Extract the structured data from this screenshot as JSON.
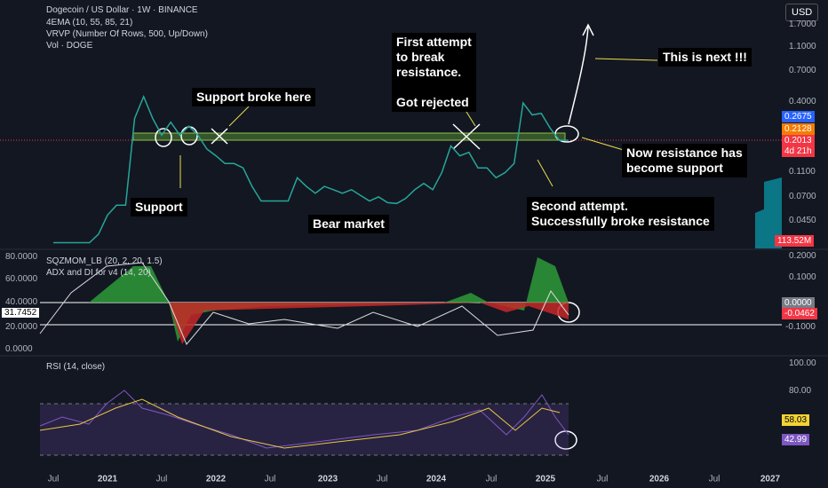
{
  "header": {
    "lines": [
      "Dogecoin / US Dollar · 1W · BINANCE",
      "4EMA (10, 55, 85, 21)",
      "VRVP (Number Of Rows, 500, Up/Down)",
      "Vol · DOGE"
    ],
    "currency_button": "USD"
  },
  "price_panel": {
    "axis_labels": [
      "1.7000",
      "1.1000",
      "0.7000",
      "0.4000",
      "0.1100",
      "0.0700",
      "0.0450"
    ],
    "price_labels": {
      "ema_blue": "0.2675",
      "ema_orange": "0.2128",
      "last": "0.2013",
      "countdown": "4d 21h",
      "volume": "113.52M"
    },
    "values": [
      0.03,
      0.03,
      0.03,
      0.03,
      0.03,
      0.035,
      0.05,
      0.06,
      0.06,
      0.3,
      0.45,
      0.3,
      0.22,
      0.28,
      0.22,
      0.26,
      0.22,
      0.17,
      0.15,
      0.13,
      0.13,
      0.12,
      0.085,
      0.065,
      0.065,
      0.065,
      0.065,
      0.1,
      0.085,
      0.075,
      0.085,
      0.08,
      0.075,
      0.08,
      0.072,
      0.065,
      0.07,
      0.063,
      0.062,
      0.068,
      0.08,
      0.09,
      0.08,
      0.11,
      0.18,
      0.15,
      0.16,
      0.12,
      0.12,
      0.1,
      0.11,
      0.13,
      0.4,
      0.32,
      0.33,
      0.25,
      0.2,
      0.2
    ]
  },
  "annotations": {
    "first_attempt": [
      "First attempt",
      "to break",
      "resistance.",
      "",
      "Got rejected"
    ],
    "this_is_next": "This is next !!!",
    "support_broke": "Support broke here",
    "support": "Support",
    "bear_market": "Bear market",
    "now_support": [
      "Now resistance has",
      "become support"
    ],
    "second_attempt": [
      "Second attempt.",
      "Successfully broke resistance"
    ]
  },
  "momentum_panel": {
    "titles": [
      "SQZMOM_LB (20, 2, 20, 1.5)",
      "ADX and DI for v4 (14, 20)"
    ],
    "left_axis": [
      "80.0000",
      "60.0000",
      "40.0000",
      "20.0000",
      "0.0000"
    ],
    "adx_label": "31.7452",
    "right_axis": [
      "0.2000",
      "0.1000",
      "-0.1000"
    ],
    "zero_label": "0.0000",
    "mom_label": "-0.0462"
  },
  "rsi_panel": {
    "title": "RSI (14, close)",
    "axis": [
      "100.00",
      "80.00"
    ],
    "ma_label": "58.03",
    "rsi_label": "42.99"
  },
  "time_axis": [
    "Jul",
    "2021",
    "Jul",
    "2022",
    "Jul",
    "2023",
    "Jul",
    "2024",
    "Jul",
    "2025",
    "Jul",
    "2026",
    "Jul",
    "2027"
  ]
}
